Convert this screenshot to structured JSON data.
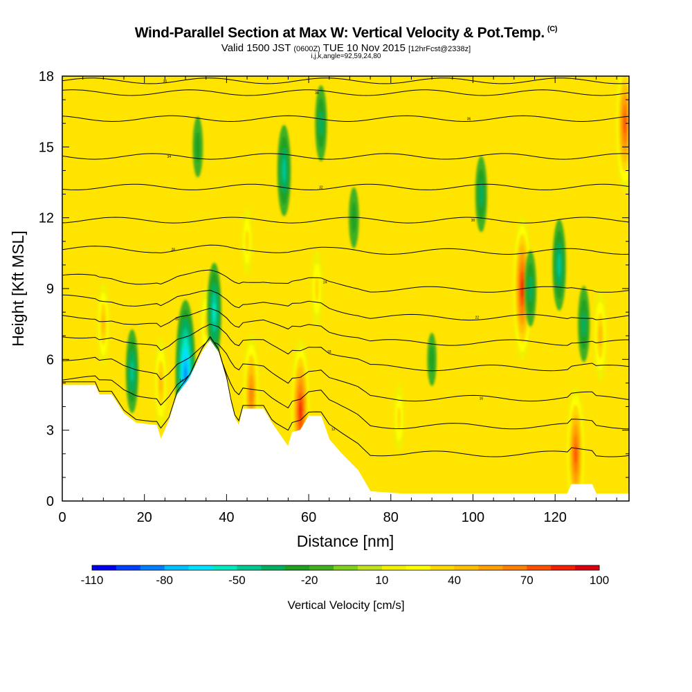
{
  "header": {
    "title": "Wind-Parallel Section at Max W: Vertical Velocity & Pot.Temp.",
    "copyright": "(C)",
    "valid_a": "Valid 1500 JST",
    "valid_utc": "(0600Z)",
    "valid_b": "TUE 10 Nov 2015",
    "forecast": "[12hrFcst@2338z]",
    "indices": "i,j,k,angle=92,59,24,80"
  },
  "chart_data": {
    "type": "heatmap",
    "xlabel": "Distance [nm]",
    "ylabel": "Height [Kft MSL]",
    "xlim": [
      0,
      138
    ],
    "ylim": [
      0,
      18
    ],
    "x_ticks": [
      0,
      20,
      40,
      60,
      80,
      100,
      120
    ],
    "y_ticks": [
      0,
      3,
      6,
      9,
      12,
      15,
      18
    ],
    "colorbar": {
      "label": "Vertical Velocity [cm/s]",
      "min": -110,
      "max": 100,
      "step": 10,
      "tick_labels": [
        "-110",
        "-80",
        "-50",
        "-20",
        "10",
        "40",
        "70",
        "100"
      ],
      "colors": [
        "#0000ee",
        "#0040ff",
        "#0080ff",
        "#00c0ff",
        "#00e0ff",
        "#00e8c0",
        "#00c890",
        "#00b060",
        "#20a020",
        "#40b020",
        "#80d020",
        "#c0e020",
        "#f0f000",
        "#ffff00",
        "#ffd800",
        "#ffc000",
        "#ffa000",
        "#ff8000",
        "#ff5000",
        "#f02000",
        "#d80010",
        "#c00030",
        "#a00060",
        "#800090",
        "#400080"
      ]
    },
    "terrain_kft": [
      [
        0,
        4.9
      ],
      [
        8,
        4.9
      ],
      [
        9,
        4.5
      ],
      [
        12,
        4.5
      ],
      [
        15,
        3.7
      ],
      [
        18,
        3.3
      ],
      [
        23,
        3.2
      ],
      [
        24,
        2.6
      ],
      [
        26,
        3.4
      ],
      [
        28,
        4.5
      ],
      [
        31,
        5.2
      ],
      [
        34,
        6.3
      ],
      [
        36,
        6.8
      ],
      [
        38,
        6.3
      ],
      [
        40,
        5.1
      ],
      [
        41,
        4.2
      ],
      [
        42,
        3.5
      ],
      [
        43,
        3.2
      ],
      [
        44,
        3.9
      ],
      [
        49,
        3.9
      ],
      [
        51,
        3.3
      ],
      [
        53,
        2.8
      ],
      [
        55,
        2.3
      ],
      [
        56,
        2.9
      ],
      [
        58,
        3.0
      ],
      [
        60,
        3.6
      ],
      [
        63,
        3.6
      ],
      [
        65,
        2.6
      ],
      [
        68,
        2.0
      ],
      [
        72,
        1.3
      ],
      [
        75,
        0.4
      ],
      [
        83,
        0.3
      ],
      [
        123,
        0.3
      ],
      [
        124,
        0.7
      ],
      [
        129,
        0.7
      ],
      [
        130,
        0.3
      ],
      [
        138,
        0.3
      ]
    ],
    "theta_contours_K": [
      {
        "label": "36",
        "kft": 17.8
      },
      {
        "label": "38",
        "kft": 17.3
      },
      {
        "label": "36",
        "kft": 16.2
      },
      {
        "label": "34",
        "kft": 14.6
      },
      {
        "label": "32",
        "kft": 13.3
      },
      {
        "label": "30",
        "kft": 11.9
      },
      {
        "label": "28",
        "kft": 10.6
      },
      {
        "label": "24",
        "kft": 9.1
      },
      {
        "label": "22",
        "kft": 8.0
      },
      {
        "label": "20",
        "kft": 7.0
      },
      {
        "label": "18",
        "kft": 6.0
      },
      {
        "label": "16",
        "kft": 4.8
      },
      {
        "label": "14",
        "kft": 3.7
      },
      {
        "label": "12",
        "kft": 2.6
      }
    ],
    "updrafts": [
      {
        "x_nm": 10,
        "kft": 7.5,
        "w": 35
      },
      {
        "x_nm": 24,
        "kft": 5.0,
        "w": 40
      },
      {
        "x_nm": 35,
        "kft": 7.5,
        "w": 30
      },
      {
        "x_nm": 46,
        "kft": 4.5,
        "w": 60
      },
      {
        "x_nm": 58,
        "kft": 3.8,
        "w": 75
      },
      {
        "x_nm": 62,
        "kft": 9.0,
        "w": 30
      },
      {
        "x_nm": 112,
        "kft": 9.0,
        "w": 75
      },
      {
        "x_nm": 125,
        "kft": 2.0,
        "w": 70
      },
      {
        "x_nm": 131,
        "kft": 7.0,
        "w": 40
      },
      {
        "x_nm": 137,
        "kft": 16.0,
        "w": 70
      },
      {
        "x_nm": 82,
        "kft": 3.5,
        "w": 25
      },
      {
        "x_nm": 45,
        "kft": 11.0,
        "w": 25
      }
    ],
    "downdrafts": [
      {
        "x_nm": 30,
        "kft": 5.3,
        "w": -80
      },
      {
        "x_nm": 17,
        "kft": 5.5,
        "w": -35
      },
      {
        "x_nm": 37,
        "kft": 8.0,
        "w": -45
      },
      {
        "x_nm": 54,
        "kft": 14.0,
        "w": -40
      },
      {
        "x_nm": 63,
        "kft": 16.0,
        "w": -30
      },
      {
        "x_nm": 102,
        "kft": 13.0,
        "w": -30
      },
      {
        "x_nm": 114,
        "kft": 9.0,
        "w": -30
      },
      {
        "x_nm": 121,
        "kft": 10.0,
        "w": -40
      },
      {
        "x_nm": 127,
        "kft": 7.5,
        "w": -30
      },
      {
        "x_nm": 33,
        "kft": 15.0,
        "w": -20
      },
      {
        "x_nm": 71,
        "kft": 12.0,
        "w": -20
      },
      {
        "x_nm": 90,
        "kft": 6.0,
        "w": -15
      }
    ]
  }
}
